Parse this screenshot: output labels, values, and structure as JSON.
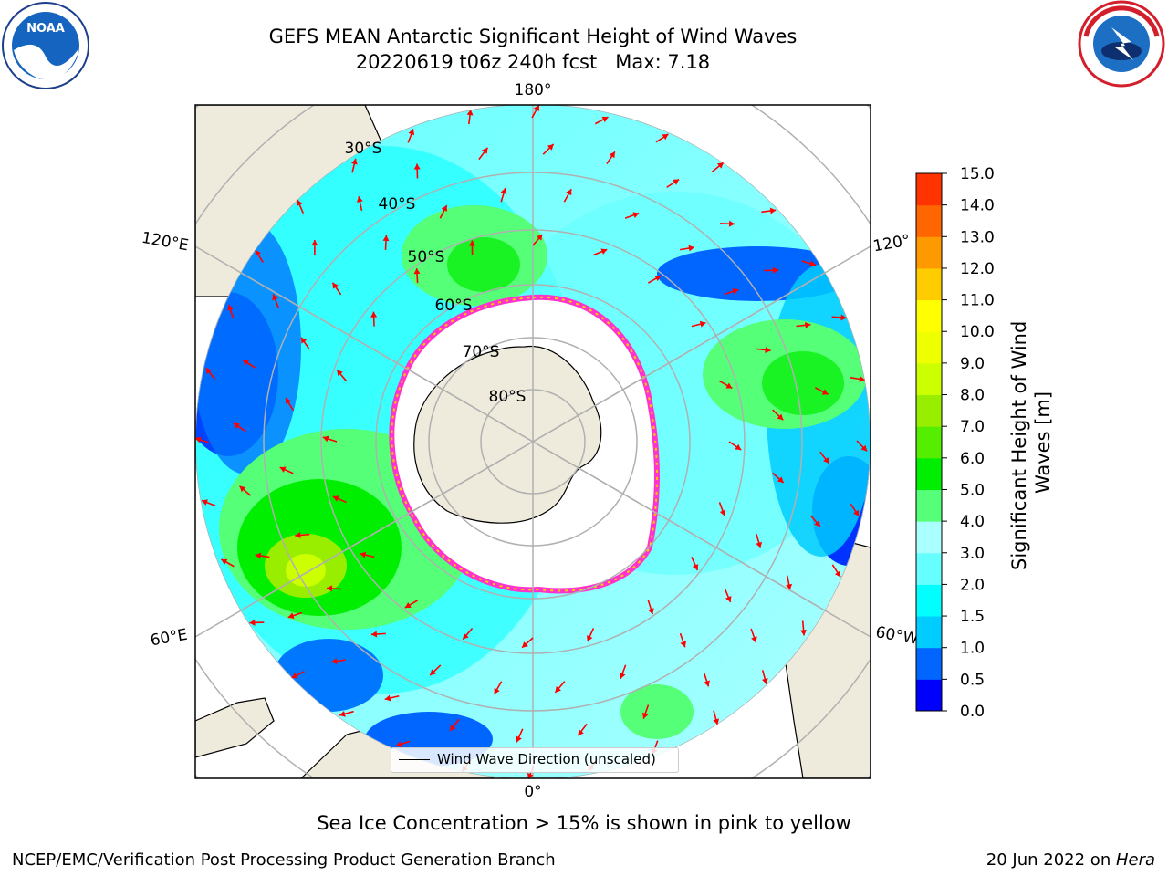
{
  "title": "GEFS MEAN Antarctic Significant Height of Wind Waves",
  "subtitle": "20220619 t06z 240h fcst   Max: 7.18",
  "logos": {
    "left": "NOAA",
    "right": "NATIONAL WEATHER SERVICE"
  },
  "map": {
    "projection": "south-polar-stereographic",
    "lon_labels": {
      "top": "180°",
      "bottom": "0°",
      "left_upper": "120°E",
      "left_lower": "60°E",
      "right_upper": "120°",
      "right_lower": "60°W"
    },
    "lat_labels": [
      "30°S",
      "40°S",
      "50°S",
      "60°S",
      "70°S",
      "80°S"
    ],
    "ice_color": "#ff33cc",
    "land_color": "#efebdc",
    "arrow_color": "#ff0000"
  },
  "legend": {
    "label": "Wind Wave Direction (unscaled)"
  },
  "colorbar": {
    "label_line1": "Significant Height of Wind",
    "label_line2": "Waves [m]",
    "ticks": [
      "0.0",
      "0.5",
      "1.0",
      "1.5",
      "2.0",
      "3.0",
      "4.0",
      "5.0",
      "6.0",
      "7.0",
      "8.0",
      "9.0",
      "10.0",
      "11.0",
      "12.0",
      "13.0",
      "14.0",
      "15.0"
    ],
    "colors": [
      "#0000ff",
      "#0066ff",
      "#00ccff",
      "#00ffff",
      "#66ffff",
      "#aaffff",
      "#55ff77",
      "#00ee00",
      "#55ee00",
      "#99ee00",
      "#ccff00",
      "#eeff00",
      "#ffff00",
      "#ffcc00",
      "#ff9900",
      "#ff6600",
      "#ff3300",
      "#ff0000"
    ],
    "max_value": 7.18
  },
  "note": "Sea Ice Concentration > 15% is shown in pink to yellow",
  "credit": "NCEP/EMC/Verification Post Processing Product Generation Branch",
  "date_prefix": "20 Jun 2022 on ",
  "date_host": "Hera"
}
